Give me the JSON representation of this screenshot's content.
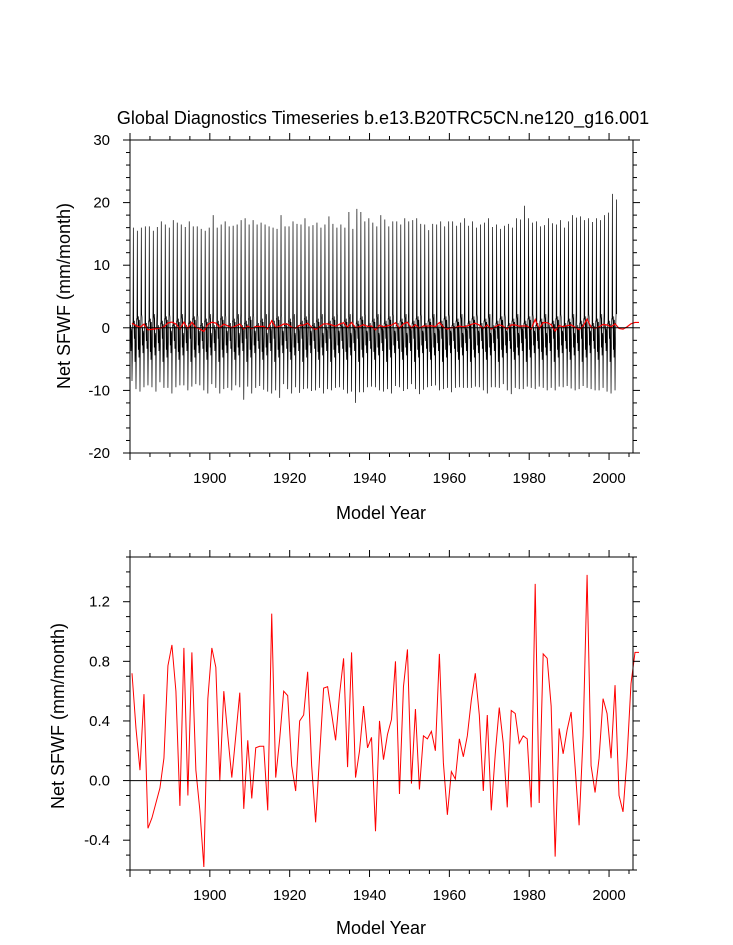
{
  "title": "Global Diagnostics Timeseries b.e13.B20TRC5CN.ne120_g16.001",
  "colors": {
    "monthly_line": "#000000",
    "annual_line": "#ff0000",
    "axis": "#000000"
  },
  "chart_data": [
    {
      "type": "line",
      "xlabel": "Model Year",
      "ylabel": "Net SFWF (mm/month)",
      "xlim": [
        1880,
        2006
      ],
      "ylim": [
        -20,
        30
      ],
      "xticks": [
        1900,
        1920,
        1940,
        1960,
        1980,
        2000
      ],
      "yticks": [
        -20,
        -10,
        0,
        10,
        20,
        30
      ],
      "ytick_labels": [
        "-20",
        "-10",
        "0",
        "10",
        "20",
        "30"
      ],
      "zero_reference_line": true,
      "series": [
        {
          "kind": "monthly",
          "color": "#000000",
          "x_start": 1880,
          "step_years": 0.08333333,
          "peak_month": 10,
          "trough_month": 6,
          "annual_max": [
            16,
            15.5,
            16,
            16.2,
            16.2,
            15.5,
            16.1,
            17,
            16.5,
            16,
            17.2,
            16.8,
            16.5,
            16.1,
            17,
            16.2,
            16.2,
            15.8,
            15.5,
            16,
            18,
            16,
            16.5,
            17,
            16.2,
            16.3,
            16.5,
            17.2,
            17.5,
            16.5,
            17.2,
            16.5,
            16.8,
            16.5,
            16.2,
            16,
            15.8,
            18,
            16.2,
            16.2,
            17,
            16.6,
            16.5,
            17.5,
            16.2,
            16.4,
            16.8,
            16,
            16.5,
            17.8,
            16.6,
            16,
            16.5,
            16,
            18.5,
            15.8,
            19,
            18.5,
            17,
            17.5,
            16.8,
            16.2,
            18,
            17.3,
            16.2,
            17,
            17,
            16.5,
            17.5,
            17,
            17.2,
            17.5,
            16.6,
            16.5,
            15.6,
            16.6,
            16.5,
            17,
            16.2,
            17,
            17,
            16.3,
            16.8,
            17.5,
            16.3,
            17,
            16,
            16.5,
            16.8,
            17.5,
            16.1,
            16.5,
            15.8,
            16.3,
            16.6,
            16,
            17.5,
            17.3,
            19.5,
            17.5,
            16.8,
            17,
            16.2,
            16.4,
            17.5,
            16.7,
            16.5,
            17.2,
            16,
            17,
            18,
            17.6,
            17.8,
            17.2,
            17.5,
            16.9,
            17.5,
            17.2,
            18,
            18.4,
            21.4,
            20.5
          ],
          "annual_min": [
            -8.5,
            -9.8,
            -10.2,
            -9.5,
            -9.2,
            -9.5,
            -10.2,
            -8.7,
            -9.6,
            -9.6,
            -10.5,
            -9.5,
            -9.2,
            -9.2,
            -10,
            -9.4,
            -9,
            -9.2,
            -10,
            -10.5,
            -9,
            -9.6,
            -10.5,
            -9.8,
            -9.6,
            -10,
            -9.2,
            -9.5,
            -11.5,
            -9.4,
            -10.5,
            -9.6,
            -9.3,
            -9.9,
            -10.2,
            -10.5,
            -10,
            -11.2,
            -9,
            -9.8,
            -10.5,
            -9.5,
            -10.4,
            -9.8,
            -9.7,
            -10.1,
            -10,
            -9.6,
            -10.5,
            -9.8,
            -10,
            -9.6,
            -9.5,
            -9.9,
            -10.5,
            -10.2,
            -12,
            -10.3,
            -10.3,
            -9.5,
            -9.4,
            -9.5,
            -10,
            -10.2,
            -9.8,
            -10.5,
            -9.3,
            -9.5,
            -10.1,
            -9.8,
            -9,
            -9.8,
            -10.6,
            -9.9,
            -9.5,
            -9.3,
            -9.2,
            -10,
            -9.8,
            -9.6,
            -10.3,
            -9.6,
            -9.5,
            -9.6,
            -9.6,
            -9.6,
            -9.4,
            -9.5,
            -10,
            -10.5,
            -9.5,
            -9.5,
            -9.6,
            -9,
            -10,
            -10.6,
            -9.6,
            -9.8,
            -9.8,
            -9.4,
            -9.6,
            -9.8,
            -9.4,
            -9.6,
            -10,
            -9.6,
            -10,
            -9.4,
            -9.5,
            -9.3,
            -9.7,
            -10,
            -9.8,
            -9.3,
            -9.6,
            -9.8,
            -10,
            -10,
            -9.6,
            -10.2,
            -10.5,
            -10
          ]
        },
        {
          "kind": "annual_mean_overlay",
          "color": "#ff0000",
          "x_start": 1880.5,
          "step_years": 1
        }
      ]
    },
    {
      "type": "line",
      "xlabel": "Model Year",
      "ylabel": "Net SFWF (mm/month)",
      "xlim": [
        1880,
        2006
      ],
      "ylim": [
        -0.6,
        1.5
      ],
      "xticks": [
        1900,
        1920,
        1940,
        1960,
        1980,
        2000
      ],
      "yticks": [
        -0.4,
        0.0,
        0.4,
        0.8,
        1.2
      ],
      "ytick_labels": [
        "-0.4",
        "0.0",
        "0.4",
        "0.8",
        "1.2"
      ],
      "zero_reference_line": true,
      "series": [
        {
          "kind": "annual_mean",
          "color": "#ff0000",
          "x_start": 1880.5,
          "step_years": 1,
          "values": [
            0.72,
            0.35,
            0.07,
            0.58,
            -0.32,
            -0.25,
            -0.15,
            -0.05,
            0.15,
            0.77,
            0.91,
            0.6,
            -0.17,
            0.89,
            -0.1,
            0.86,
            0.07,
            -0.2,
            -0.58,
            0.55,
            0.89,
            0.76,
            0.0,
            0.6,
            0.3,
            0.02,
            0.3,
            0.59,
            -0.19,
            0.27,
            -0.12,
            0.22,
            0.23,
            0.23,
            -0.2,
            1.12,
            0.02,
            0.28,
            0.6,
            0.57,
            0.1,
            -0.07,
            0.4,
            0.44,
            0.73,
            0.1,
            -0.28,
            0.17,
            0.62,
            0.63,
            0.45,
            0.27,
            0.58,
            0.82,
            0.09,
            0.86,
            0.02,
            0.2,
            0.5,
            0.22,
            0.29,
            -0.34,
            0.4,
            0.14,
            0.31,
            0.41,
            0.8,
            -0.09,
            0.63,
            0.88,
            -0.02,
            0.48,
            -0.06,
            0.3,
            0.28,
            0.33,
            0.2,
            0.85,
            0.12,
            -0.23,
            0.06,
            0.01,
            0.28,
            0.16,
            0.3,
            0.54,
            0.72,
            0.44,
            -0.07,
            0.44,
            -0.2,
            0.18,
            0.49,
            0.25,
            -0.18,
            0.47,
            0.45,
            0.25,
            0.3,
            0.28,
            -0.18,
            1.32,
            -0.15,
            0.85,
            0.82,
            0.5,
            -0.51,
            0.35,
            0.18,
            0.34,
            0.46,
            0.09,
            -0.3,
            0.3,
            1.38,
            0.1,
            -0.08,
            0.15,
            0.55,
            0.45,
            0.15,
            0.64,
            -0.1,
            -0.21,
            0.15,
            0.65,
            0.86,
            0.86
          ]
        }
      ]
    }
  ]
}
